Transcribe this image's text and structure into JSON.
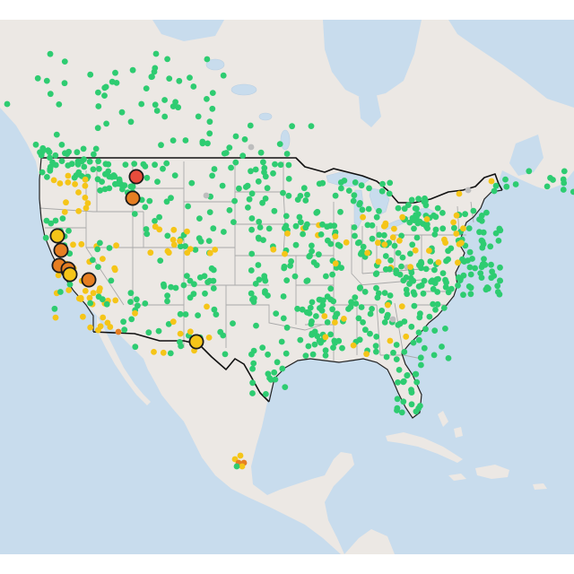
{
  "map": {
    "region": "continental-us",
    "basemap": "light-gray",
    "colors": {
      "land": "#ece8e4",
      "water": "#c8dced",
      "state_border": "#a9a9a9",
      "country_border": "#111111",
      "good": "#2ecc71",
      "moderate": "#f5c518",
      "unhealthy_sensitive": "#e67e22",
      "unhealthy": "#e74c3c",
      "no_data": "#bdbdbd"
    },
    "marker_categories": [
      {
        "key": "good",
        "color": "#2ecc71"
      },
      {
        "key": "moderate",
        "color": "#f5c518"
      },
      {
        "key": "unhealthy_sensitive",
        "color": "#e67e22"
      },
      {
        "key": "unhealthy",
        "color": "#e74c3c"
      },
      {
        "key": "no_data",
        "color": "#bdbdbd"
      }
    ]
  }
}
